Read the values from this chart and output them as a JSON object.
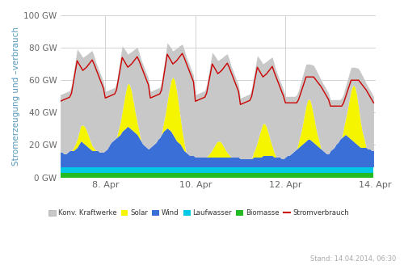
{
  "stand": "Stand: 14.04.2014, 06:30",
  "ylabel": "Stromerzeugung und –verbrauch",
  "ylim": [
    0,
    100
  ],
  "yticks": [
    0,
    20,
    40,
    60,
    80,
    100
  ],
  "ytick_labels": [
    "0 GW",
    "20 GW",
    "40 GW",
    "60 GW",
    "80 GW",
    "100 GW"
  ],
  "xtick_labels": [
    "8. Apr",
    "10. Apr",
    "12. Apr",
    "14. Apr"
  ],
  "colors": {
    "konv": "#c8c8c8",
    "solar": "#f5f500",
    "wind": "#3a6fd8",
    "laufwasser": "#00c8e6",
    "biomasse": "#22bb22",
    "verbrauch": "#cc0000",
    "background": "#f0f4f8",
    "grid": "#cccccc"
  },
  "legend_labels": [
    "Konv. Kraftwerke",
    "Solar",
    "Wind",
    "Laufwasser",
    "Biomasse",
    "Stromverbrauch"
  ],
  "biomasse_val": 3.0,
  "laufwasser_val": 3.5,
  "n_hours": 168
}
